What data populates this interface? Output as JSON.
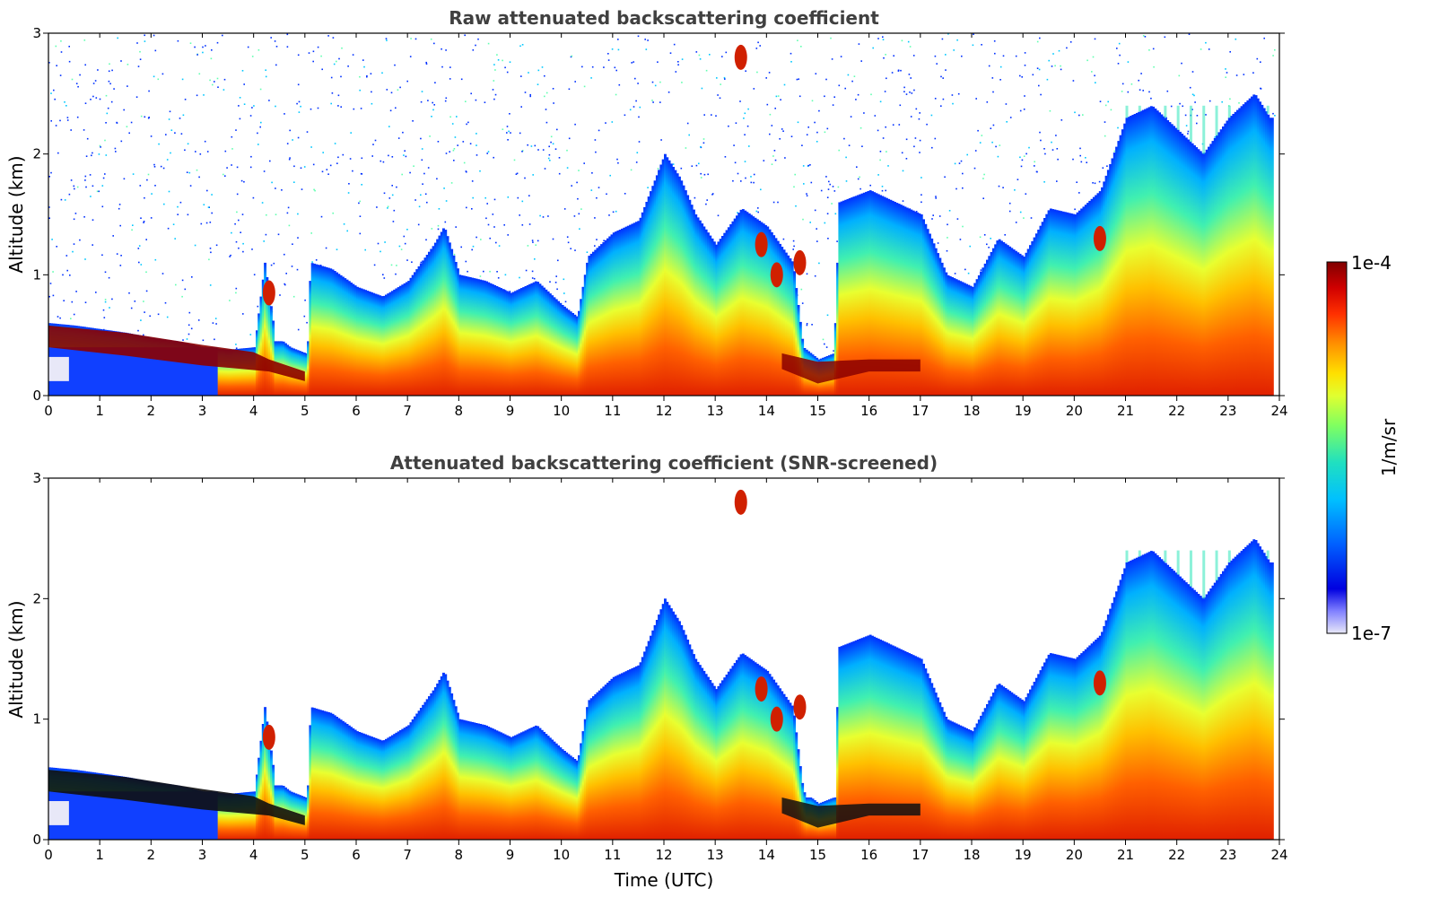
{
  "chart_data": [
    {
      "type": "heatmap",
      "title": "Raw attenuated backscattering coefficient",
      "xlabel": "",
      "ylabel": "Altitude (km)",
      "xlim": [
        0,
        24
      ],
      "ylim": [
        0,
        3
      ],
      "xticks": [
        "0",
        "1",
        "2",
        "3",
        "4",
        "5",
        "6",
        "7",
        "8",
        "9",
        "10",
        "11",
        "12",
        "13",
        "14",
        "15",
        "16",
        "17",
        "18",
        "19",
        "20",
        "21",
        "22",
        "23",
        "24"
      ],
      "yticks": [
        "0",
        "1",
        "2",
        "3"
      ],
      "boundary_layer_top_km": [
        [
          0,
          0.6
        ],
        [
          0.5,
          0.58
        ],
        [
          1,
          0.55
        ],
        [
          1.5,
          0.52
        ],
        [
          2,
          0.48
        ],
        [
          2.5,
          0.45
        ],
        [
          3,
          0.4
        ],
        [
          3.5,
          0.38
        ],
        [
          4,
          0.4
        ],
        [
          4.2,
          1.1
        ],
        [
          4.4,
          0.5
        ],
        [
          4.7,
          0.4
        ],
        [
          5,
          0.35
        ],
        [
          5.1,
          1.1
        ],
        [
          5.5,
          1.05
        ],
        [
          6,
          0.9
        ],
        [
          6.5,
          0.82
        ],
        [
          7,
          0.95
        ],
        [
          7.5,
          1.25
        ],
        [
          7.7,
          1.4
        ],
        [
          8,
          1.0
        ],
        [
          8.5,
          0.95
        ],
        [
          9,
          0.85
        ],
        [
          9.5,
          0.95
        ],
        [
          10,
          0.75
        ],
        [
          10.3,
          0.65
        ],
        [
          10.5,
          1.15
        ],
        [
          11,
          1.35
        ],
        [
          11.5,
          1.45
        ],
        [
          12,
          2.0
        ],
        [
          12.3,
          1.8
        ],
        [
          12.6,
          1.5
        ],
        [
          13,
          1.25
        ],
        [
          13.5,
          1.55
        ],
        [
          14,
          1.4
        ],
        [
          14.5,
          1.1
        ],
        [
          14.7,
          0.4
        ],
        [
          15,
          0.3
        ],
        [
          15.3,
          0.35
        ],
        [
          15.4,
          1.6
        ],
        [
          16,
          1.7
        ],
        [
          16.5,
          1.6
        ],
        [
          17,
          1.5
        ],
        [
          17.5,
          1.0
        ],
        [
          18,
          0.9
        ],
        [
          18.5,
          1.3
        ],
        [
          19,
          1.15
        ],
        [
          19.5,
          1.55
        ],
        [
          20,
          1.5
        ],
        [
          20.5,
          1.7
        ],
        [
          21,
          2.3
        ],
        [
          21.5,
          2.4
        ],
        [
          22,
          2.2
        ],
        [
          22.5,
          2.0
        ],
        [
          23,
          2.3
        ],
        [
          23.5,
          2.5
        ],
        [
          23.8,
          2.3
        ]
      ]
    },
    {
      "type": "heatmap",
      "title": "Attenuated backscattering coefficient (SNR-screened)",
      "xlabel": "Time (UTC)",
      "ylabel": "Altitude (km)",
      "xlim": [
        0,
        24
      ],
      "ylim": [
        0,
        3
      ],
      "xticks": [
        "0",
        "1",
        "2",
        "3",
        "4",
        "5",
        "6",
        "7",
        "8",
        "9",
        "10",
        "11",
        "12",
        "13",
        "14",
        "15",
        "16",
        "17",
        "18",
        "19",
        "20",
        "21",
        "22",
        "23",
        "24"
      ],
      "yticks": [
        "0",
        "1",
        "2",
        "3"
      ]
    }
  ],
  "colorbar": {
    "label": "1/m/sr",
    "max_label": "1e-4",
    "min_label": "1e-7",
    "colors": [
      "#e8e8f8",
      "#6060ff",
      "#0000e0",
      "#0060ff",
      "#00c0ff",
      "#20e0c0",
      "#80ff60",
      "#e0ff30",
      "#ffe000",
      "#ff9000",
      "#ff3000",
      "#d00000",
      "#800000"
    ]
  }
}
